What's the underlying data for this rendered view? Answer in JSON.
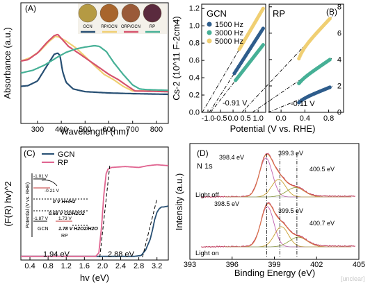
{
  "watermark": "[unclear]",
  "panelA": {
    "label": "(A)",
    "xlabel": "Wavelength (nm)",
    "ylabel": "Absorbance (a.u.)",
    "xticks": [
      "300",
      "400",
      "500",
      "600",
      "700",
      "800"
    ],
    "xlim": [
      230,
      850
    ],
    "legend": [
      "GCN",
      "RP/GCN",
      "ORP/GCN",
      "RP"
    ],
    "photo_colors": [
      "#b59a43",
      "#a8652c",
      "#9a5a38",
      "#5a2a3e"
    ],
    "series": [
      {
        "name": "GCN",
        "color": "#274f73",
        "x": [
          230,
          260,
          300,
          340,
          370,
          385,
          395,
          405,
          420,
          450,
          500,
          600,
          700,
          850
        ],
        "y": [
          0.12,
          0.13,
          0.2,
          0.43,
          0.6,
          0.62,
          0.58,
          0.35,
          0.18,
          0.08,
          0.04,
          0.02,
          0.01,
          0.0
        ]
      },
      {
        "name": "RP/GCN",
        "color": "#f0cf72",
        "x": [
          230,
          270,
          310,
          350,
          375,
          390,
          420,
          460,
          500,
          540,
          580,
          620,
          660,
          700,
          850
        ],
        "y": [
          0.5,
          0.55,
          0.65,
          0.8,
          0.87,
          0.86,
          0.8,
          0.7,
          0.57,
          0.43,
          0.3,
          0.22,
          0.12,
          0.05,
          0.05
        ]
      },
      {
        "name": "ORP/GCN",
        "color": "#d6536d",
        "x": [
          230,
          260,
          300,
          340,
          370,
          385,
          400,
          430,
          480,
          520,
          560,
          600,
          640,
          680,
          710,
          850
        ],
        "y": [
          0.5,
          0.52,
          0.62,
          0.78,
          0.88,
          0.9,
          0.84,
          0.72,
          0.6,
          0.5,
          0.4,
          0.3,
          0.22,
          0.12,
          0.05,
          0.04
        ]
      },
      {
        "name": "RP",
        "color": "#46b096",
        "x": [
          230,
          280,
          330,
          380,
          420,
          460,
          500,
          540,
          560,
          590,
          620,
          660,
          700,
          730,
          760,
          850
        ],
        "y": [
          0.32,
          0.36,
          0.44,
          0.55,
          0.63,
          0.68,
          0.71,
          0.73,
          0.72,
          0.64,
          0.48,
          0.3,
          0.14,
          0.08,
          0.07,
          0.06
        ]
      }
    ]
  },
  "panelB": {
    "label": "(B)",
    "ylabel": "Cs-2 (10^11 F-2cm4)",
    "xlabel": "Potential (V vs. RHE)",
    "gcn": {
      "title": "GCN",
      "xticks": [
        "-1.0",
        "-0.5",
        "0.0",
        "0.5",
        "1.0"
      ],
      "yticks": [
        "0.0",
        "0.2",
        "0.4",
        "0.6",
        "0.8",
        "1.0",
        "1.2"
      ],
      "xlim": [
        -1.25,
        1.3
      ],
      "ylim": [
        0,
        1.25
      ],
      "legend": [
        "1500 Hz",
        "3000 Hz",
        "5000 Hz"
      ],
      "annotation": "-0.91 V",
      "series": [
        {
          "name": "1500 Hz",
          "color": "#2e5d8c",
          "x0": 0.05,
          "x1": 1.2,
          "y0": 0.45,
          "y1": 0.97
        },
        {
          "name": "3000 Hz",
          "color": "#46b096",
          "x0": 0.1,
          "x1": 1.2,
          "y0": 0.37,
          "y1": 0.78
        },
        {
          "name": "5000 Hz",
          "color": "#f0cf72",
          "x0": 0.25,
          "x1": 1.2,
          "y0": 0.73,
          "y1": 1.2
        }
      ]
    },
    "rp": {
      "title": "RP",
      "xticks": [
        "0.0",
        "0.4",
        "0.8"
      ],
      "yticks": [
        "0",
        "2",
        "4",
        "6",
        "8"
      ],
      "xlim": [
        -0.2,
        1.05
      ],
      "ylim": [
        0,
        8.2
      ],
      "annotation": "-0.11 V",
      "series": [
        {
          "name": "1500 Hz",
          "color": "#2e5d8c",
          "x0": 0.3,
          "x1": 0.82,
          "y0": 0.95,
          "y1": 1.9
        },
        {
          "name": "3000 Hz",
          "color": "#46b096",
          "x0": 0.3,
          "x1": 0.82,
          "y0": 2.4,
          "y1": 4.0
        },
        {
          "name": "5000 Hz",
          "color": "#f0cf72",
          "x0": 0.3,
          "x1": 0.82,
          "y0": 4.6,
          "y1": 7.1
        }
      ]
    }
  },
  "panelC": {
    "label": "(C)",
    "ylabel": "(F(R) hv)^2",
    "xlabel": "hv (eV)",
    "xticks": [
      "0.4",
      "0.8",
      "1.2",
      "1.6",
      "2.0",
      "2.4",
      "2.8",
      "3.2"
    ],
    "xlim": [
      0.2,
      3.45
    ],
    "legend": [
      "GCN",
      "RP"
    ],
    "bandgaps": [
      "1.94 eV",
      "2.88 eV"
    ],
    "series": [
      {
        "name": "GCN",
        "color": "#274f73",
        "x": [
          0.2,
          2.7,
          2.85,
          2.95,
          3.05,
          3.1,
          3.15,
          3.2,
          3.25,
          3.3,
          3.35,
          3.45
        ],
        "y": [
          0.01,
          0.01,
          0.02,
          0.08,
          0.2,
          0.3,
          0.42,
          0.5,
          0.54,
          0.56,
          0.56,
          0.57
        ]
      },
      {
        "name": "RP",
        "color": "#e06490",
        "x": [
          0.2,
          1.85,
          1.92,
          1.98,
          2.03,
          2.08,
          2.12,
          2.2,
          2.5,
          2.8,
          3.0,
          3.2,
          3.45
        ],
        "y": [
          0.01,
          0.01,
          0.05,
          0.35,
          0.7,
          0.93,
          0.98,
          1.0,
          1.01,
          1.0,
          1.02,
          1.03,
          1.02
        ]
      }
    ],
    "inset": {
      "ylabel": "Potential (V vs. RHE)",
      "values": [
        "-1.01 V",
        "-0.21 V",
        "0 V H+/H2",
        "0.68 V O2/H2O2",
        "-1.87 V",
        "1.73 V",
        "1.78 V H2O2/H2O"
      ],
      "labels": [
        "GCN",
        "RP"
      ]
    }
  },
  "panelD": {
    "label": "(D)",
    "xlabel": "Binding Energy (eV)",
    "ylabel": "Intensity (a.u.)",
    "title": "N 1s",
    "xticks": [
      "393",
      "396",
      "399",
      "402",
      "405"
    ],
    "xlim": [
      393,
      405
    ],
    "conditions": [
      "Light off",
      "Light on"
    ],
    "peaks_off": [
      "398.4 eV",
      "399.3 eV",
      "400.5 eV"
    ],
    "peaks_on": [
      "398.5 eV",
      "399.5 eV",
      "400.7 eV"
    ],
    "components": {
      "off": [
        {
          "center": 398.4,
          "amp": 1.0,
          "width": 0.65
        },
        {
          "center": 399.3,
          "amp": 0.45,
          "width": 0.7
        },
        {
          "center": 400.5,
          "amp": 0.24,
          "width": 0.9
        }
      ],
      "on": [
        {
          "center": 398.5,
          "amp": 1.0,
          "width": 0.65
        },
        {
          "center": 399.5,
          "amp": 0.5,
          "width": 0.7
        },
        {
          "center": 400.7,
          "amp": 0.24,
          "width": 0.9
        }
      ]
    }
  },
  "chart_data": [
    {
      "type": "line",
      "title": "",
      "xlabel": "Wavelength (nm)",
      "ylabel": "Absorbance (a.u.)",
      "xlim": [
        230,
        850
      ],
      "series_names": [
        "GCN",
        "RP/GCN",
        "ORP/GCN",
        "RP"
      ]
    },
    {
      "type": "scatter",
      "title": "GCN",
      "xlabel": "Potential (V vs. RHE)",
      "ylabel": "Cs-2 (10^11 F-2cm4)",
      "xlim": [
        -1.25,
        1.3
      ],
      "ylim": [
        0,
        1.25
      ],
      "series_names": [
        "1500 Hz",
        "3000 Hz",
        "5000 Hz"
      ],
      "flatband": -0.91
    },
    {
      "type": "scatter",
      "title": "RP",
      "xlabel": "Potential (V vs. RHE)",
      "xlim": [
        -0.2,
        1.05
      ],
      "ylim": [
        0,
        8.2
      ],
      "series_names": [
        "1500 Hz",
        "3000 Hz",
        "5000 Hz"
      ],
      "flatband": -0.11
    },
    {
      "type": "line",
      "title": "",
      "xlabel": "hv (eV)",
      "ylabel": "(F(R) hv)^2",
      "xlim": [
        0.2,
        3.45
      ],
      "series_names": [
        "GCN",
        "RP"
      ],
      "bandgaps_eV": {
        "RP": 1.94,
        "GCN": 2.88
      }
    },
    {
      "type": "line",
      "title": "N 1s",
      "xlabel": "Binding Energy (eV)",
      "ylabel": "Intensity (a.u.)",
      "xlim": [
        393,
        405
      ],
      "peaks_light_off": [
        398.4,
        399.3,
        400.5
      ],
      "peaks_light_on": [
        398.5,
        399.5,
        400.7
      ]
    }
  ]
}
